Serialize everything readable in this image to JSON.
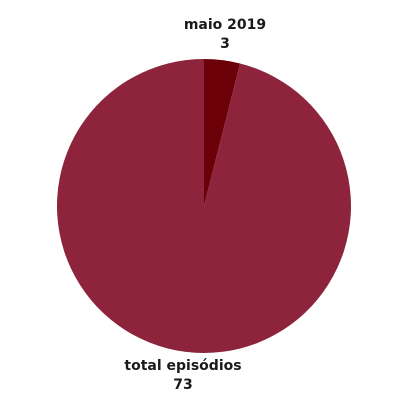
{
  "chart_data": {
    "type": "pie",
    "categories": [
      "maio 2019",
      "total episódios"
    ],
    "values": [
      3,
      73
    ],
    "colors": [
      "#6b0008",
      "#8e243c"
    ],
    "title": "",
    "legend": "none"
  }
}
